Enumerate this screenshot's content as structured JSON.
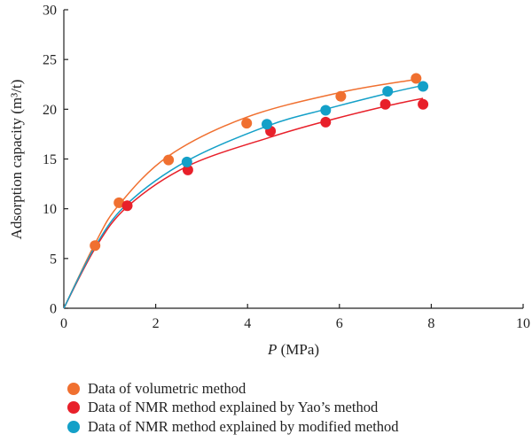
{
  "chart_data": {
    "type": "scatter",
    "ylabel": "Adsorption capacity (m³/t)",
    "xlabel_italic": "P",
    "xlabel_rest": " (MPa)",
    "xlim": [
      0,
      10
    ],
    "ylim": [
      0,
      30
    ],
    "x_ticks": [
      0,
      2,
      4,
      6,
      8,
      10
    ],
    "y_ticks": [
      0,
      5,
      10,
      15,
      20,
      25,
      30
    ],
    "grid": false,
    "legend_position": "bottom",
    "series": [
      {
        "name": "Data of volumetric method",
        "color": "#f07030",
        "points": [
          [
            0.68,
            6.3
          ],
          [
            1.2,
            10.6
          ],
          [
            2.28,
            14.9
          ],
          [
            3.98,
            18.6
          ],
          [
            6.03,
            21.3
          ],
          [
            7.67,
            23.1
          ]
        ],
        "fit_curve": [
          [
            0,
            0
          ],
          [
            0.68,
            6.5
          ],
          [
            1.2,
            10.4
          ],
          [
            2.28,
            15.3
          ],
          [
            3.98,
            19.2
          ],
          [
            6.03,
            21.7
          ],
          [
            7.67,
            23.0
          ]
        ]
      },
      {
        "name": "Data of NMR method explained by Yao’s method",
        "color": "#e8202a",
        "points": [
          [
            1.38,
            10.3
          ],
          [
            2.7,
            13.9
          ],
          [
            4.5,
            17.8
          ],
          [
            5.7,
            18.7
          ],
          [
            7.0,
            20.5
          ],
          [
            7.82,
            20.5
          ]
        ],
        "fit_curve": [
          [
            0,
            0
          ],
          [
            0.68,
            6.0
          ],
          [
            1.38,
            10.2
          ],
          [
            2.7,
            14.3
          ],
          [
            4.5,
            17.2
          ],
          [
            5.7,
            18.8
          ],
          [
            7.0,
            20.3
          ],
          [
            7.82,
            21.1
          ]
        ]
      },
      {
        "name": "Data of NMR method explained by modified method",
        "color": "#14a0c8",
        "points": [
          [
            2.68,
            14.7
          ],
          [
            4.42,
            18.5
          ],
          [
            5.7,
            19.9
          ],
          [
            7.05,
            21.8
          ],
          [
            7.82,
            22.3
          ]
        ],
        "fit_curve": [
          [
            0,
            0
          ],
          [
            0.68,
            6.2
          ],
          [
            1.38,
            10.5
          ],
          [
            2.68,
            14.8
          ],
          [
            4.42,
            18.3
          ],
          [
            5.7,
            20.0
          ],
          [
            7.05,
            21.6
          ],
          [
            7.82,
            22.4
          ]
        ]
      }
    ]
  }
}
